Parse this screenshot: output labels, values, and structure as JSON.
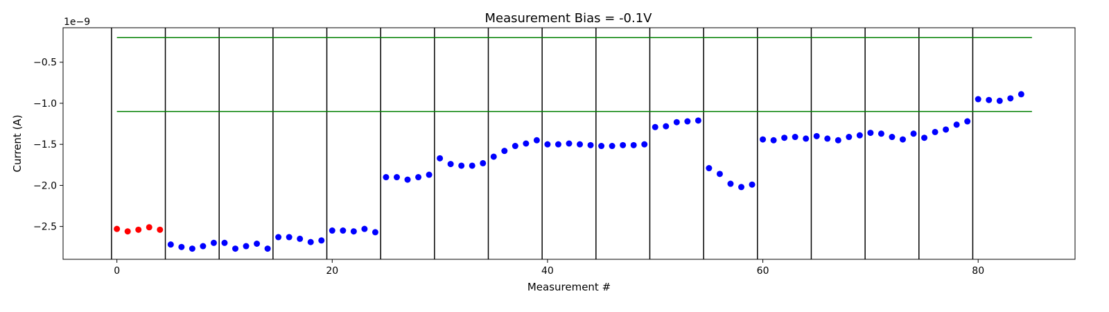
{
  "chart_data": {
    "type": "scatter",
    "title": "Measurement Bias = -0.1V",
    "xlabel": "Measurement #",
    "ylabel": "Current (A)",
    "y_scale_label": "1e−9",
    "xlim": [
      -5,
      89
    ],
    "ylim": [
      -2.9,
      -0.08
    ],
    "x_ticks": [
      0,
      20,
      40,
      60,
      80
    ],
    "x_tick_labels": [
      "0",
      "20",
      "40",
      "60",
      "80"
    ],
    "y_ticks": [
      -0.5,
      -1.0,
      -1.5,
      -2.0,
      -2.5
    ],
    "y_tick_labels": [
      "−0.5",
      "−1.0",
      "−1.5",
      "−2.0",
      "−2.5"
    ],
    "grid": false,
    "vertical_separators_x": [
      -0.5,
      4.5,
      9.5,
      14.5,
      19.5,
      24.5,
      29.5,
      34.5,
      39.5,
      44.5,
      49.5,
      54.5,
      59.5,
      64.5,
      69.5,
      74.5,
      79.5
    ],
    "separator_color": "#000000",
    "threshold_lines": {
      "color": "#007f00",
      "x_range": [
        0,
        85
      ],
      "y_values": [
        -0.2,
        -1.1
      ]
    },
    "series": [
      {
        "color": "#ff0000",
        "x": [
          0,
          1,
          2,
          3,
          4
        ],
        "y": [
          -2.53,
          -2.56,
          -2.54,
          -2.51,
          -2.54
        ]
      },
      {
        "color": "#0000ff",
        "x": [
          5,
          6,
          7,
          8,
          9,
          10,
          11,
          12,
          13,
          14,
          15,
          16,
          17,
          18,
          19,
          20,
          21,
          22,
          23,
          24,
          25,
          26,
          27,
          28,
          29,
          30,
          31,
          32,
          33,
          34,
          35,
          36,
          37,
          38,
          39,
          40,
          41,
          42,
          43,
          44,
          45,
          46,
          47,
          48,
          49,
          50,
          51,
          52,
          53,
          54,
          55,
          56,
          57,
          58,
          59,
          60,
          61,
          62,
          63,
          64,
          65,
          66,
          67,
          68,
          69,
          70,
          71,
          72,
          73,
          74,
          75,
          76,
          77,
          78,
          79,
          80,
          81,
          82,
          83,
          84
        ],
        "y": [
          -2.72,
          -2.75,
          -2.77,
          -2.74,
          -2.7,
          -2.7,
          -2.77,
          -2.74,
          -2.71,
          -2.77,
          -2.63,
          -2.63,
          -2.65,
          -2.69,
          -2.67,
          -2.55,
          -2.55,
          -2.56,
          -2.53,
          -2.57,
          -1.9,
          -1.9,
          -1.93,
          -1.9,
          -1.87,
          -1.67,
          -1.74,
          -1.76,
          -1.76,
          -1.73,
          -1.65,
          -1.58,
          -1.52,
          -1.49,
          -1.45,
          -1.5,
          -1.5,
          -1.49,
          -1.5,
          -1.51,
          -1.52,
          -1.52,
          -1.51,
          -1.51,
          -1.5,
          -1.29,
          -1.28,
          -1.23,
          -1.22,
          -1.21,
          -1.79,
          -1.86,
          -1.98,
          -2.02,
          -1.99,
          -1.44,
          -1.45,
          -1.42,
          -1.41,
          -1.43,
          -1.4,
          -1.43,
          -1.45,
          -1.41,
          -1.39,
          -1.36,
          -1.37,
          -1.41,
          -1.44,
          -1.37,
          -1.42,
          -1.35,
          -1.32,
          -1.26,
          -1.22,
          -0.95,
          -0.96,
          -0.97,
          -0.94,
          -0.89
        ]
      }
    ]
  }
}
